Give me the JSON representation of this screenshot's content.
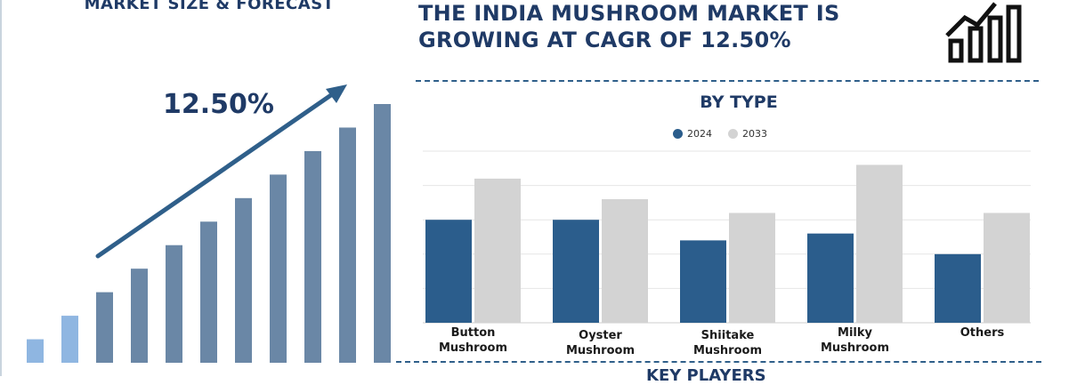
{
  "left": {
    "title": "MARKET SIZE & FORECAST",
    "cagr": "12.50%"
  },
  "header": {
    "title_line1": "THE INDIA MUSHROOM MARKET IS",
    "title_line2": "GROWING AT CAGR OF 12.50%"
  },
  "section": {
    "title": "BY TYPE",
    "bottom_title": "KEY PLAYERS"
  },
  "colors": {
    "series_2024": "#2b5d8c",
    "series_2033": "#d3d3d3",
    "forecast_light": "#8fb6e1",
    "forecast_dark": "#6a87a6",
    "accent": "#1f3a66"
  },
  "chart_data": [
    {
      "type": "bar",
      "categories": [
        "Button Mushroom",
        "Oyster Mushroom",
        "Shiitake Mushroom",
        "Milky Mushroom",
        "Others"
      ],
      "series": [
        {
          "name": "2024",
          "values": [
            3.0,
            3.0,
            2.4,
            2.6,
            2.0
          ]
        },
        {
          "name": "2033",
          "values": [
            4.2,
            3.6,
            3.2,
            4.6,
            3.2
          ]
        }
      ],
      "ylim": [
        0,
        5
      ],
      "grid": true,
      "legend": "top"
    },
    {
      "type": "bar",
      "values": [
        1,
        2,
        3,
        4,
        5,
        6,
        7,
        8,
        9,
        10,
        11
      ],
      "highlight_first": 2,
      "ylim": [
        0,
        11
      ],
      "annotation": "12.50%"
    }
  ]
}
